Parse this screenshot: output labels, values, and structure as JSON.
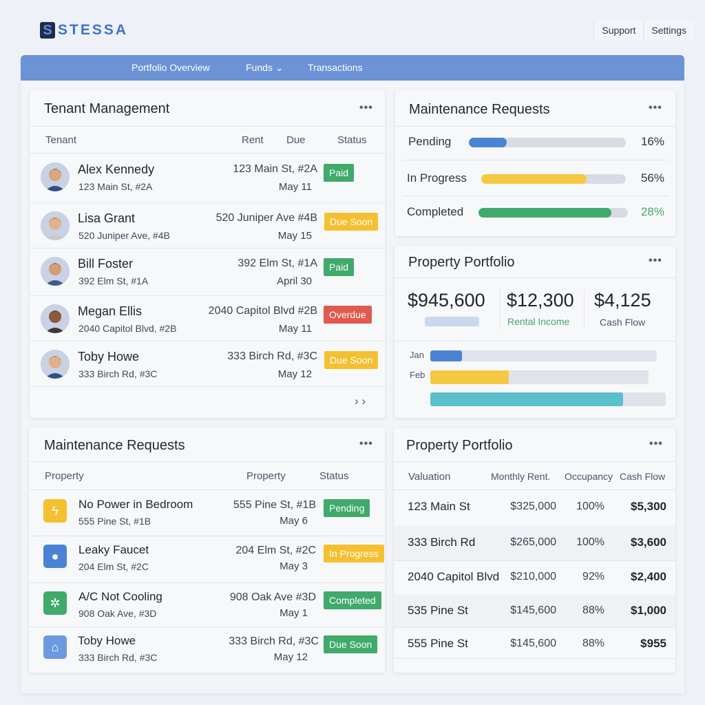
{
  "brand": {
    "mark": "S",
    "name": "STESSA"
  },
  "top_links": [
    "Support",
    "Settings"
  ],
  "nav": [
    "Portfolio Overview",
    "Funds",
    "Transactions"
  ],
  "tenant_panel": {
    "title": "Tenant Management",
    "headers": {
      "tenant": "Tenant",
      "rent": "Rent",
      "due": "Due",
      "status": "Status"
    },
    "rows": [
      {
        "name": "Alex Kennedy",
        "sub": "123 Main St, #2A",
        "address": "123 Main St, #2A",
        "date": "May 11",
        "status": "Paid",
        "status_color": "#3faa6a"
      },
      {
        "name": "Lisa Grant",
        "sub": "520 Juniper Ave, #4B",
        "address": "520 Juniper Ave #4B",
        "date": "May 15",
        "status": "Due Soon",
        "status_color": "#f5c02f"
      },
      {
        "name": "Bill Foster",
        "sub": "392 Elm St,  #1A",
        "address": "392 Elm St, #1A",
        "date": "April 30",
        "status": "Paid",
        "status_color": "#3faa6a"
      },
      {
        "name": "Megan Ellis",
        "sub": "2040 Capitol Blvd, #2B",
        "address": "2040 Capitol Blvd #2B",
        "date": "May 11",
        "status": "Overdue",
        "status_color": "#e05a4f"
      },
      {
        "name": "Toby Howe",
        "sub": "333 Birch Rd, #3C",
        "address": "333 Birch Rd, #3C",
        "date": "May 12",
        "status": "Due Soon",
        "status_color": "#f5c02f"
      }
    ],
    "pager": "› ›"
  },
  "maint_summary": {
    "title": "Maintenance Requests",
    "items": [
      {
        "label": "Pending",
        "percent": 16,
        "display": "16%",
        "color": "#4a83d4"
      },
      {
        "label": "In Progress",
        "percent": 56,
        "display": "56%",
        "color": "#f5c842"
      },
      {
        "label": "Completed",
        "percent": 28,
        "display": "28%",
        "color": "#3faa6a"
      }
    ]
  },
  "portfolio_summary": {
    "title": "Property Portfolio",
    "metrics": [
      {
        "value": "$945,600",
        "label": ""
      },
      {
        "value": "$12,300",
        "label": "Rental Income"
      },
      {
        "value": "$4,125",
        "label": "Cash Flow"
      }
    ],
    "bars": [
      {
        "label": "Jan",
        "fraction": 0.14,
        "color": "#4a83d4"
      },
      {
        "label": "Feb",
        "fraction": 0.36,
        "color": "#f5c842"
      },
      {
        "label": "",
        "fraction": 0.82,
        "color": "#5bbfcc"
      }
    ]
  },
  "maint_list": {
    "title": "Maintenance Requests",
    "headers": {
      "property": "Property",
      "address": "Property",
      "status": "Status"
    },
    "rows": [
      {
        "icon": "lightning-icon",
        "glyph": "ϟ",
        "tile_color": "#f5c02f",
        "title": "No Power in Bedroom",
        "sub": "555 Pine St, #1B",
        "address": "555 Pine St, #1B",
        "date": "May 6",
        "status": "Pending",
        "status_color": "#3faa6a"
      },
      {
        "icon": "drop-icon",
        "glyph": "●",
        "tile_color": "#4a83d4",
        "title": "Leaky Faucet",
        "sub": "204 Elm St, #2C",
        "address": "204 Elm St, #2C",
        "date": "May 3",
        "status": "In Progress",
        "status_color": "#f5c02f"
      },
      {
        "icon": "gear-icon",
        "glyph": "✲",
        "tile_color": "#3faa6a",
        "title": "A/C Not Cooling",
        "sub": "908 Oak Ave, #3D",
        "address": "908 Oak Ave #3D",
        "date": "May 1",
        "status": "Completed",
        "status_color": "#3faa6a"
      },
      {
        "icon": "house-icon",
        "glyph": "⌂",
        "tile_color": "#6b9ae0",
        "title": "Toby Howe",
        "sub": "333 Birch Rd, #3C",
        "address": "333 Birch Rd, #3C",
        "date": "May 12",
        "status": "Due Soon",
        "status_color": "#3faa6a"
      }
    ]
  },
  "portfolio_table": {
    "title": "Property Portfolio",
    "headers": {
      "valuation": "Valuation",
      "rent": "Monthly Rent.",
      "occupancy": "Occupancy",
      "cashflow": "Cash Flow"
    },
    "rows": [
      {
        "property": "123 Main St",
        "value": "$325,000",
        "occupancy": "100%",
        "cashflow": "$5,300"
      },
      {
        "property": "333 Birch Rd",
        "value": "$265,000",
        "occupancy": "100%",
        "cashflow": "$3,600"
      },
      {
        "property": "2040 Capitol Blvd",
        "value": "$210,000",
        "occupancy": "92%",
        "cashflow": "$2,400"
      },
      {
        "property": "535 Pine St",
        "value": "$145,600",
        "occupancy": "88%",
        "cashflow": "$1,000"
      },
      {
        "property": "555 Pine St",
        "value": "$145,600",
        "occupancy": "88%",
        "cashflow": "$955"
      }
    ]
  },
  "colors": {
    "nav": "#6b93d6",
    "accent": "#3d74c8",
    "positive": "#3faa6a"
  }
}
